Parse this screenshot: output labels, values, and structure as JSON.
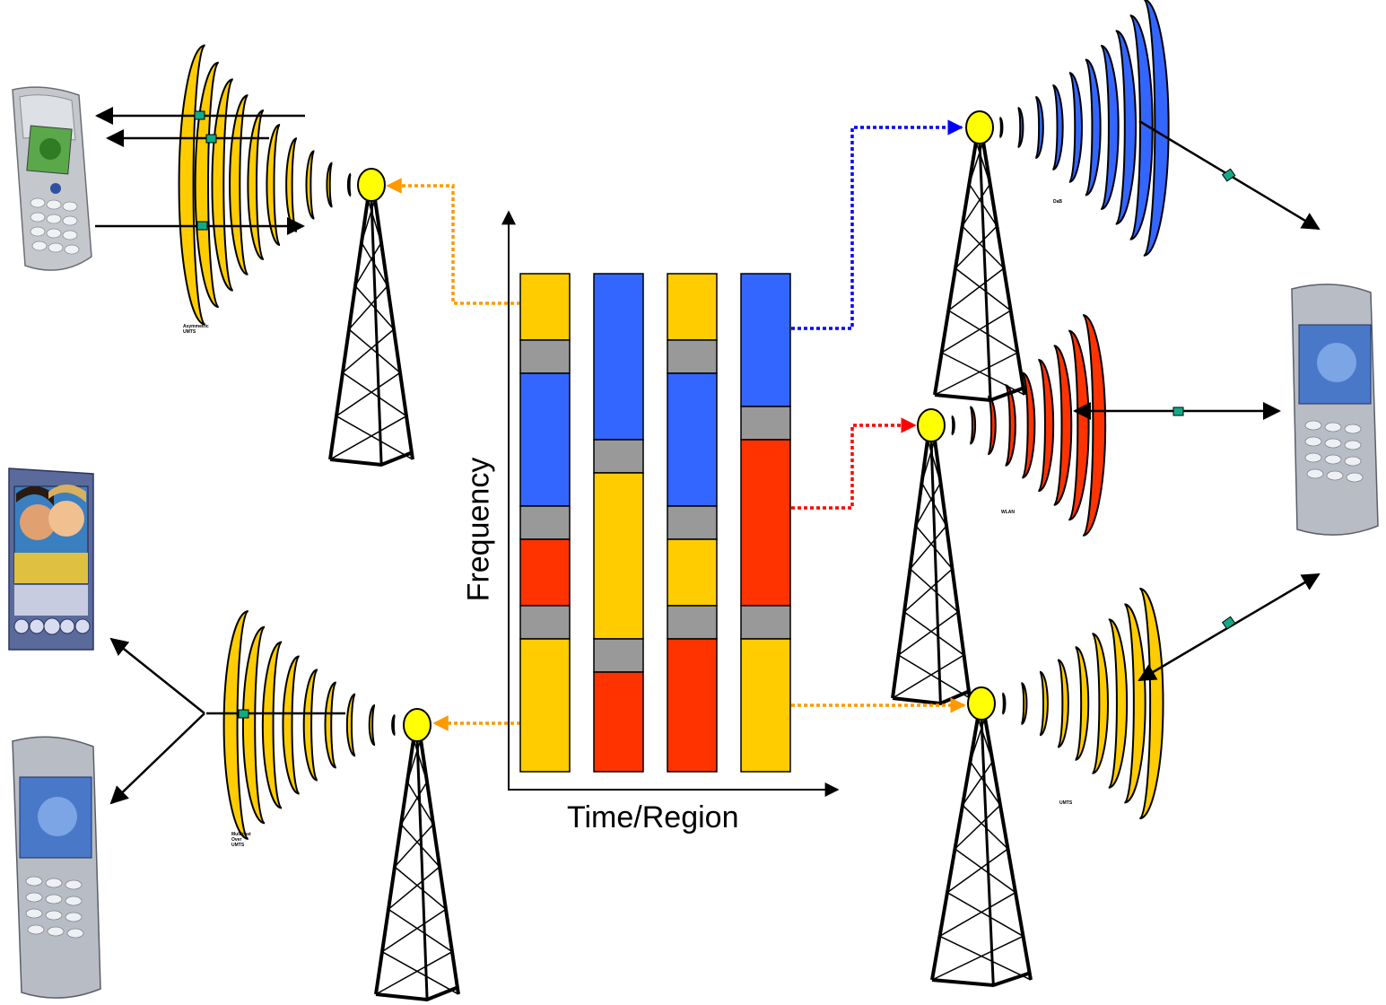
{
  "axes": {
    "y_label": "Frequency",
    "x_label": "Time/Region"
  },
  "networks": {
    "asymmetric_umts": "Asymmetric\nUMTS",
    "dab": "DaB",
    "wlan": "WLAN",
    "umts": "UMTS",
    "multicast_umts": "Multicast\nOver\nUMTS"
  },
  "spectrum_columns": [
    [
      "yellow",
      "gray",
      "blue",
      "gray",
      "red",
      "gray",
      "yellow"
    ],
    [
      "blue",
      "gray",
      "yellow",
      "gray",
      "red"
    ],
    [
      "yellow",
      "gray",
      "blue",
      "gray",
      "yellow",
      "gray",
      "red"
    ],
    [
      "blue",
      "gray",
      "red",
      "gray",
      "yellow"
    ]
  ],
  "colors": {
    "yellow": "#ffcc00",
    "blue": "#3366ff",
    "red": "#ff3300",
    "gray": "#999999",
    "antenna": "#ffff00",
    "orange_link": "#ff9900",
    "blue_link": "#0000ff",
    "red_link": "#ff0000",
    "ip_packet": "#11aa88"
  }
}
